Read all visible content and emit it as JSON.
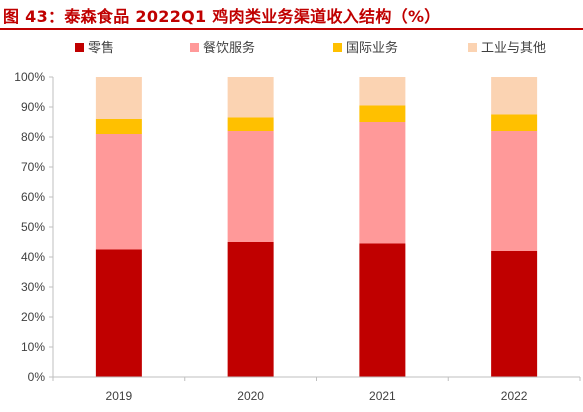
{
  "title": "图 43：泰森食品 2022Q1 鸡肉类业务渠道收入结构（%）",
  "colors": {
    "title": "#c00000",
    "series": [
      "#c00000",
      "#ff9999",
      "#ffc000",
      "#fbd3b2"
    ],
    "axis": "#bfbfbf",
    "text": "#404040"
  },
  "chart_data": {
    "type": "bar",
    "stacked": true,
    "title": "图 43：泰森食品 2022Q1 鸡肉类业务渠道收入结构（%）",
    "categories": [
      "2019",
      "2020",
      "2021",
      "2022"
    ],
    "series": [
      {
        "name": "零售",
        "values": [
          42.5,
          45,
          44.5,
          42
        ]
      },
      {
        "name": "餐饮服务",
        "values": [
          38.5,
          37,
          40.5,
          40
        ]
      },
      {
        "name": "国际业务",
        "values": [
          5,
          4.5,
          5.5,
          5.5
        ]
      },
      {
        "name": "工业与其他",
        "values": [
          14,
          13.5,
          9.5,
          12.5
        ]
      }
    ],
    "ylim": [
      0,
      100
    ],
    "yticks": [
      "0%",
      "10%",
      "20%",
      "30%",
      "40%",
      "50%",
      "60%",
      "70%",
      "80%",
      "90%",
      "100%"
    ],
    "grid": false,
    "legend_position": "top"
  }
}
